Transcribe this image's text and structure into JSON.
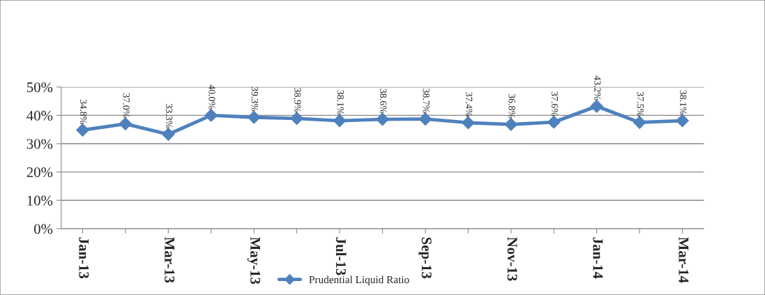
{
  "chart_data": {
    "type": "line",
    "categories": [
      "Jan-13",
      null,
      "Mar-13",
      null,
      "May-13",
      null,
      "Jul-13",
      null,
      "Sep-13",
      null,
      "Nov-13",
      null,
      "Jan-14",
      null,
      "Mar-14"
    ],
    "series": [
      {
        "name": "Prudential Liquid Ratio",
        "color": "#4f81bd",
        "values": [
          34.8,
          37.0,
          33.3,
          40.0,
          39.3,
          38.9,
          38.1,
          38.6,
          38.7,
          37.4,
          36.8,
          37.6,
          43.2,
          37.5,
          38.1
        ],
        "value_labels": [
          "34.8%",
          "37.0%",
          "33.3%",
          "40.0%",
          "39.3%",
          "38.9%",
          "38.1%",
          "38.6%",
          "38.7%",
          "37.4%",
          "36.8%",
          "37.6%",
          "43.2%",
          "37.5%",
          "38.1%"
        ]
      }
    ],
    "ylim": [
      0,
      50
    ],
    "yticks": [
      {
        "value": 0,
        "label": "0%"
      },
      {
        "value": 10,
        "label": "10%"
      },
      {
        "value": 20,
        "label": "20%"
      },
      {
        "value": 30,
        "label": "30%"
      },
      {
        "value": 40,
        "label": "40%"
      },
      {
        "value": 50,
        "label": "50%"
      }
    ],
    "grid": "y",
    "legend": "bottom",
    "marker": "diamond",
    "line_style": "solid"
  }
}
